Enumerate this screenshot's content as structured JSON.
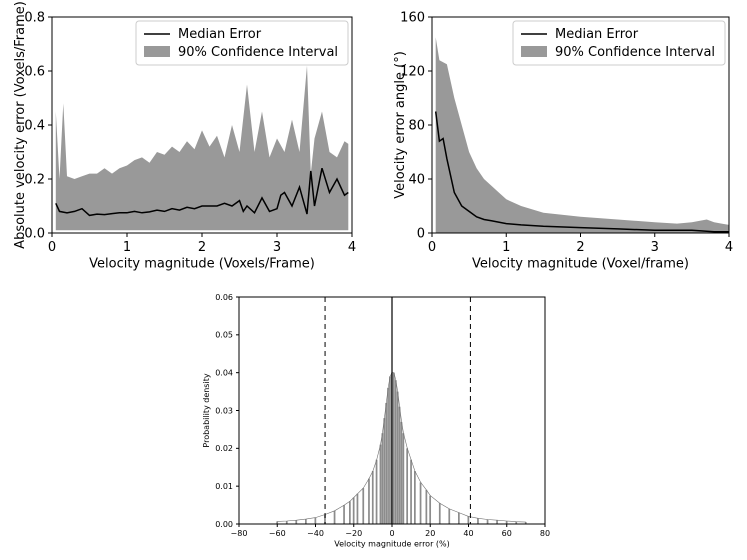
{
  "chart_data": [
    {
      "type": "line",
      "title": "",
      "xlabel": "Velocity magnitude (Voxels/Frame)",
      "ylabel": "Absolute velocity error (Voxels/Frame)",
      "xlim": [
        0,
        4
      ],
      "ylim": [
        0,
        0.8
      ],
      "xticks": [
        0,
        1,
        2,
        3,
        4
      ],
      "yticks": [
        0.0,
        0.2,
        0.4,
        0.6,
        0.8
      ],
      "xtick_labels": [
        "0",
        "1",
        "2",
        "3",
        "4"
      ],
      "ytick_labels": [
        "0.0",
        "0.2",
        "0.4",
        "0.6",
        "0.8"
      ],
      "legend": {
        "placement": "top-right",
        "entries": [
          "Median Error",
          "90% Confidence Interval"
        ]
      },
      "series": [
        {
          "name": "Median Error",
          "kind": "line",
          "color": "#000000",
          "x": [
            0.05,
            0.1,
            0.2,
            0.3,
            0.4,
            0.5,
            0.6,
            0.7,
            0.8,
            0.9,
            1.0,
            1.1,
            1.2,
            1.3,
            1.4,
            1.5,
            1.6,
            1.7,
            1.8,
            1.9,
            2.0,
            2.1,
            2.2,
            2.3,
            2.4,
            2.5,
            2.55,
            2.6,
            2.7,
            2.8,
            2.9,
            3.0,
            3.05,
            3.1,
            3.2,
            3.3,
            3.4,
            3.45,
            3.5,
            3.6,
            3.7,
            3.8,
            3.9,
            3.95
          ],
          "y": [
            0.11,
            0.08,
            0.075,
            0.08,
            0.09,
            0.065,
            0.07,
            0.068,
            0.072,
            0.075,
            0.075,
            0.08,
            0.075,
            0.078,
            0.085,
            0.08,
            0.09,
            0.085,
            0.095,
            0.09,
            0.1,
            0.1,
            0.1,
            0.11,
            0.1,
            0.12,
            0.08,
            0.1,
            0.075,
            0.13,
            0.08,
            0.09,
            0.14,
            0.15,
            0.1,
            0.17,
            0.07,
            0.23,
            0.1,
            0.24,
            0.15,
            0.2,
            0.14,
            0.15
          ]
        },
        {
          "name": "90% Confidence Interval",
          "kind": "band",
          "color": "#999999",
          "x": [
            0.05,
            0.1,
            0.15,
            0.2,
            0.3,
            0.4,
            0.5,
            0.6,
            0.7,
            0.8,
            0.9,
            1.0,
            1.1,
            1.2,
            1.3,
            1.4,
            1.5,
            1.6,
            1.7,
            1.8,
            1.9,
            2.0,
            2.1,
            2.2,
            2.3,
            2.4,
            2.5,
            2.6,
            2.7,
            2.8,
            2.9,
            3.0,
            3.1,
            3.2,
            3.3,
            3.4,
            3.45,
            3.5,
            3.6,
            3.7,
            3.8,
            3.9,
            3.95
          ],
          "lower": [
            0.01,
            0.01,
            0.01,
            0.01,
            0.01,
            0.01,
            0.01,
            0.01,
            0.01,
            0.01,
            0.01,
            0.01,
            0.01,
            0.01,
            0.01,
            0.01,
            0.01,
            0.01,
            0.01,
            0.01,
            0.01,
            0.01,
            0.01,
            0.01,
            0.01,
            0.01,
            0.01,
            0.01,
            0.01,
            0.01,
            0.01,
            0.01,
            0.01,
            0.01,
            0.01,
            0.01,
            0.01,
            0.01,
            0.01,
            0.01,
            0.01,
            0.01,
            0.01
          ],
          "upper": [
            0.45,
            0.2,
            0.48,
            0.21,
            0.2,
            0.21,
            0.22,
            0.22,
            0.24,
            0.22,
            0.24,
            0.25,
            0.27,
            0.28,
            0.26,
            0.3,
            0.29,
            0.32,
            0.3,
            0.34,
            0.31,
            0.38,
            0.32,
            0.36,
            0.28,
            0.4,
            0.3,
            0.55,
            0.3,
            0.45,
            0.28,
            0.35,
            0.3,
            0.42,
            0.3,
            0.62,
            0.22,
            0.35,
            0.45,
            0.3,
            0.28,
            0.34,
            0.33
          ]
        }
      ]
    },
    {
      "type": "line",
      "title": "",
      "xlabel": "Velocity magnitude (Voxel/frame)",
      "ylabel": "Velocity error angle (°)",
      "xlim": [
        0,
        4
      ],
      "ylim": [
        0,
        160
      ],
      "xticks": [
        0,
        1,
        2,
        3,
        4
      ],
      "yticks": [
        0,
        40,
        80,
        120,
        160
      ],
      "xtick_labels": [
        "0",
        "1",
        "2",
        "3",
        "4"
      ],
      "ytick_labels": [
        "0",
        "40",
        "80",
        "120",
        "160"
      ],
      "legend": {
        "placement": "top-right",
        "entries": [
          "Median Error",
          "90% Confidence Interval"
        ]
      },
      "series": [
        {
          "name": "Median Error",
          "kind": "line",
          "color": "#000000",
          "x": [
            0.05,
            0.1,
            0.15,
            0.2,
            0.3,
            0.4,
            0.5,
            0.6,
            0.7,
            0.8,
            1.0,
            1.2,
            1.5,
            2.0,
            2.5,
            3.0,
            3.5,
            3.8,
            4.0
          ],
          "y": [
            90,
            68,
            70,
            55,
            30,
            20,
            16,
            12,
            10,
            9,
            7,
            6,
            5,
            4,
            3,
            2,
            2,
            1,
            1
          ]
        },
        {
          "name": "90% Confidence Interval",
          "kind": "band",
          "color": "#999999",
          "x": [
            0.05,
            0.1,
            0.2,
            0.3,
            0.4,
            0.5,
            0.6,
            0.7,
            0.8,
            0.9,
            1.0,
            1.2,
            1.5,
            2.0,
            2.5,
            3.0,
            3.3,
            3.5,
            3.7,
            3.8,
            3.9,
            4.0
          ],
          "lower": [
            0,
            0,
            0,
            0,
            0,
            0,
            0,
            0,
            0,
            0,
            0,
            0,
            0,
            0,
            0,
            0,
            0,
            0,
            0,
            0,
            0,
            0
          ],
          "upper": [
            145,
            128,
            125,
            100,
            80,
            60,
            48,
            40,
            35,
            30,
            25,
            20,
            15,
            12,
            10,
            8,
            7,
            8,
            10,
            8,
            7,
            6
          ]
        }
      ]
    },
    {
      "type": "bar",
      "title": "",
      "xlabel": "Velocity magnitude error (%)",
      "ylabel": "Probability density",
      "xlim": [
        -80,
        80
      ],
      "ylim": [
        0,
        0.06
      ],
      "xticks": [
        -80,
        -60,
        -40,
        -20,
        0,
        20,
        40,
        60,
        80
      ],
      "yticks": [
        0.0,
        0.01,
        0.02,
        0.03,
        0.04,
        0.05,
        0.06
      ],
      "xtick_labels": [
        "−80",
        "−60",
        "−40",
        "−20",
        "0",
        "20",
        "40",
        "60",
        "80"
      ],
      "ytick_labels": [
        "0.00",
        "0.01",
        "0.02",
        "0.03",
        "0.04",
        "0.05",
        "0.06"
      ],
      "bin_width": 1,
      "reference_lines": [
        {
          "x": -35,
          "style": "dashed"
        },
        {
          "x": 0,
          "style": "solid"
        },
        {
          "x": 41,
          "style": "dashed"
        }
      ],
      "bins": [
        {
          "x": -60,
          "v": 0.0007
        },
        {
          "x": -55,
          "v": 0.0008
        },
        {
          "x": -50,
          "v": 0.001
        },
        {
          "x": -45,
          "v": 0.0013
        },
        {
          "x": -40,
          "v": 0.0017
        },
        {
          "x": -35,
          "v": 0.0025
        },
        {
          "x": -30,
          "v": 0.0035
        },
        {
          "x": -25,
          "v": 0.005
        },
        {
          "x": -22,
          "v": 0.006
        },
        {
          "x": -20,
          "v": 0.007
        },
        {
          "x": -18,
          "v": 0.008
        },
        {
          "x": -15,
          "v": 0.0095
        },
        {
          "x": -12,
          "v": 0.012
        },
        {
          "x": -10,
          "v": 0.014
        },
        {
          "x": -8,
          "v": 0.017
        },
        {
          "x": -6,
          "v": 0.021
        },
        {
          "x": -5,
          "v": 0.024
        },
        {
          "x": -4,
          "v": 0.028
        },
        {
          "x": -3,
          "v": 0.032
        },
        {
          "x": -2,
          "v": 0.036
        },
        {
          "x": -1,
          "v": 0.039
        },
        {
          "x": 0,
          "v": 0.04
        },
        {
          "x": 1,
          "v": 0.04
        },
        {
          "x": 2,
          "v": 0.038
        },
        {
          "x": 3,
          "v": 0.035
        },
        {
          "x": 4,
          "v": 0.031
        },
        {
          "x": 5,
          "v": 0.027
        },
        {
          "x": 6,
          "v": 0.024
        },
        {
          "x": 8,
          "v": 0.02
        },
        {
          "x": 10,
          "v": 0.017
        },
        {
          "x": 12,
          "v": 0.014
        },
        {
          "x": 15,
          "v": 0.011
        },
        {
          "x": 18,
          "v": 0.009
        },
        {
          "x": 20,
          "v": 0.0075
        },
        {
          "x": 25,
          "v": 0.0055
        },
        {
          "x": 30,
          "v": 0.004
        },
        {
          "x": 35,
          "v": 0.003
        },
        {
          "x": 40,
          "v": 0.002
        },
        {
          "x": 45,
          "v": 0.0015
        },
        {
          "x": 50,
          "v": 0.0012
        },
        {
          "x": 55,
          "v": 0.001
        },
        {
          "x": 60,
          "v": 0.0008
        },
        {
          "x": 65,
          "v": 0.0006
        },
        {
          "x": 70,
          "v": 0.0005
        }
      ]
    }
  ]
}
